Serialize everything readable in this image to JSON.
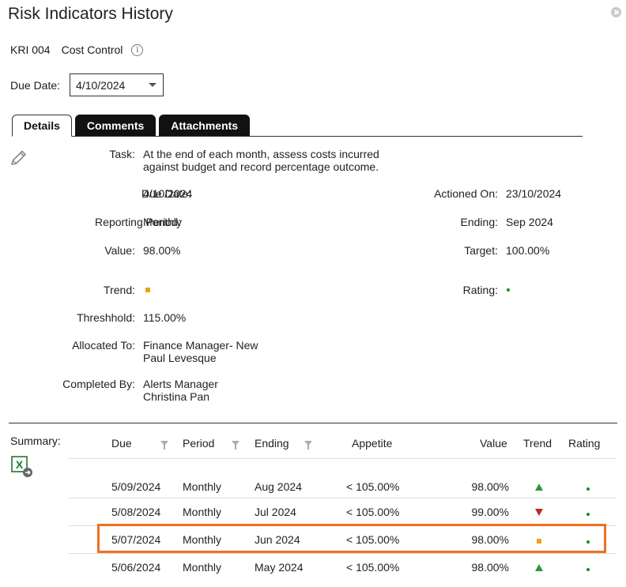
{
  "window": {
    "title": "Risk Indicators History"
  },
  "kri": {
    "code": "KRI 004",
    "name": "Cost Control",
    "info_glyph": "i"
  },
  "due_date_select": {
    "label": "Due Date:",
    "value": "4/10/2024"
  },
  "tabs": [
    {
      "label": "Details",
      "active": true
    },
    {
      "label": "Comments",
      "active": false
    },
    {
      "label": "Attachments",
      "active": false
    }
  ],
  "details": {
    "task_label": "Task:",
    "task_line1": "At the end of each month, assess costs incurred",
    "task_line2": "against budget and record percentage outcome.",
    "due_label": "Due Date:",
    "due_value": "4/10/2024",
    "actioned_label": "Actioned On:",
    "actioned_value": "23/10/2024",
    "period_label": "Reporting Period:",
    "period_value": "Monthly",
    "ending_label": "Ending:",
    "ending_value": "Sep 2024",
    "value_label": "Value:",
    "value_value": "98.00%",
    "target_label": "Target:",
    "target_value": "100.00%",
    "trend_label": "Trend:",
    "trend_icon": "trend-steady-square",
    "rating_label": "Rating:",
    "rating_icon": "rating-green-dot",
    "threshold_label": "Threshhold:",
    "threshold_value": "115.00%",
    "allocated_label": "Allocated To:",
    "allocated_line1": "Finance Manager- New",
    "allocated_line2": "Paul Levesque",
    "completed_label": "Completed By:",
    "completed_line1": "Alerts Manager",
    "completed_line2": "Christina Pan"
  },
  "summary": {
    "label": "Summary:",
    "excel_glyph": "X",
    "columns": {
      "due": "Due",
      "period": "Period",
      "ending": "Ending",
      "appetite": "Appetite",
      "value": "Value",
      "trend": "Trend",
      "rating": "Rating"
    },
    "rows": [
      {
        "due": "5/09/2024",
        "period": "Monthly",
        "ending": "Aug 2024",
        "appetite": "< 105.00%",
        "value": "98.00%",
        "trend": "up",
        "rating": "green"
      },
      {
        "due": "5/08/2024",
        "period": "Monthly",
        "ending": "Jul 2024",
        "appetite": "< 105.00%",
        "value": "99.00%",
        "trend": "down",
        "rating": "green"
      },
      {
        "due": "5/07/2024",
        "period": "Monthly",
        "ending": "Jun 2024",
        "appetite": "< 105.00%",
        "value": "98.00%",
        "trend": "steady",
        "rating": "green"
      },
      {
        "due": "5/06/2024",
        "period": "Monthly",
        "ending": "May 2024",
        "appetite": "< 105.00%",
        "value": "98.00%",
        "trend": "up",
        "rating": "green"
      }
    ]
  },
  "colors": {
    "highlight": "#f07020",
    "trend_up": "#2a9a3a",
    "trend_down": "#c0261f",
    "trend_steady": "#e8a317",
    "rating_green": "#1a8a2a"
  }
}
